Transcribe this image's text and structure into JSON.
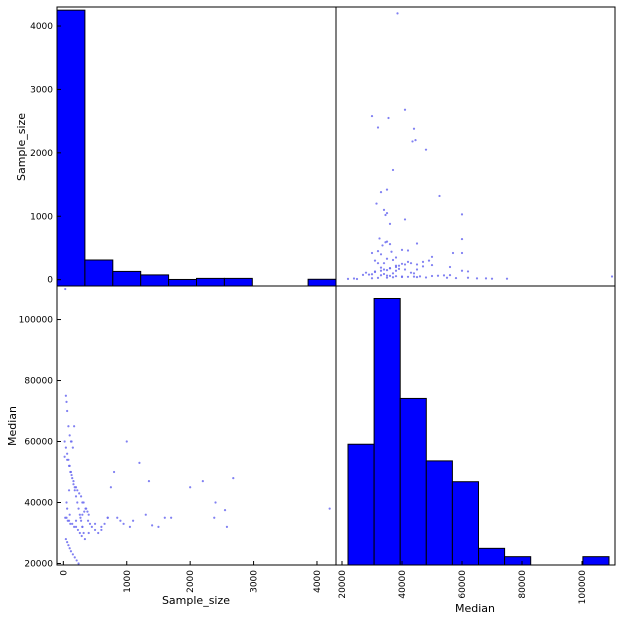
{
  "chart_data": [
    {
      "panel": "Sample_size vs Sample_size",
      "type": "bar",
      "bin_edges": [
        0,
        435,
        870,
        1305,
        1740,
        2175,
        2610,
        3045,
        3480,
        3915,
        4350
      ],
      "values": [
        4250,
        310,
        130,
        75,
        3,
        20,
        20,
        0,
        0,
        6
      ],
      "ylim": [
        -100,
        4300
      ],
      "yticks": [
        "0",
        "1000",
        "2000",
        "3000",
        "4000"
      ],
      "ylabel": "Sample_size"
    },
    {
      "panel": "Sample_size vs Median",
      "type": "scatter",
      "xlim": [
        18000,
        111000
      ],
      "ylim": [
        -100,
        4300
      ],
      "x": [
        38500,
        30000,
        41000,
        44000,
        32000,
        35500,
        48000,
        43500,
        44500,
        37000,
        35000,
        52500,
        33000,
        31500,
        34500,
        35000,
        34000,
        41000,
        36000,
        32500,
        60000,
        34500,
        45000,
        33500,
        40000,
        42000,
        32000,
        36500,
        30000,
        33000,
        60000,
        50000,
        38000,
        35000,
        31000,
        37000,
        42000,
        34000,
        40000,
        45000,
        50000,
        38000,
        47000,
        56000,
        33000,
        36000,
        39000,
        41000,
        35000,
        60000,
        62000,
        31000,
        43000,
        37000,
        34000,
        30000,
        29000,
        27000,
        33000,
        35000,
        36000,
        38000,
        40000,
        42000,
        45000,
        48000,
        55000,
        58000,
        65000,
        70000,
        25000,
        22000,
        24000,
        30000,
        32000,
        35000,
        37000,
        40000,
        44000,
        46000,
        50000,
        52000,
        54000,
        56000,
        62000,
        68000,
        75000,
        110000,
        28000,
        31000,
        33000,
        34000,
        36000,
        38000,
        39000,
        41000,
        43000,
        47000,
        49000,
        60000,
        57000,
        35000,
        36000,
        32000,
        38000,
        44000,
        45000
      ],
      "y": [
        4200,
        2580,
        2680,
        2380,
        2400,
        2550,
        2050,
        2180,
        2200,
        1730,
        1420,
        1320,
        1380,
        1200,
        1020,
        1050,
        1100,
        950,
        880,
        650,
        640,
        590,
        570,
        540,
        470,
        460,
        450,
        440,
        420,
        400,
        420,
        360,
        350,
        330,
        300,
        310,
        280,
        260,
        250,
        240,
        230,
        220,
        210,
        200,
        190,
        180,
        170,
        160,
        150,
        140,
        130,
        120,
        110,
        100,
        90,
        85,
        80,
        75,
        70,
        65,
        60,
        55,
        50,
        45,
        40,
        35,
        30,
        25,
        20,
        15,
        10,
        12,
        18,
        22,
        28,
        32,
        38,
        42,
        48,
        52,
        58,
        62,
        68,
        72,
        30,
        20,
        15,
        50,
        110,
        130,
        140,
        160,
        180,
        200,
        220,
        240,
        260,
        280,
        300,
        1030,
        420,
        600,
        560,
        260,
        140,
        100,
        160
      ],
      "point_color": "#6a6af0"
    },
    {
      "panel": "Median vs Sample_size",
      "type": "scatter",
      "xlim": [
        -100,
        4300
      ],
      "ylim": [
        19500,
        111000
      ],
      "x": [
        30,
        40,
        50,
        60,
        80,
        100,
        120,
        150,
        20,
        60,
        90,
        110,
        130,
        160,
        180,
        200,
        220,
        250,
        280,
        300,
        320,
        350,
        380,
        400,
        30,
        50,
        70,
        90,
        110,
        140,
        170,
        200,
        230,
        260,
        290,
        40,
        60,
        80,
        100,
        120,
        150,
        180,
        210,
        240,
        270,
        300,
        330,
        360,
        390,
        420,
        450,
        500,
        550,
        600,
        650,
        700,
        750,
        800,
        850,
        900,
        950,
        1000,
        1050,
        1100,
        1200,
        1300,
        1350,
        1400,
        1500,
        1600,
        1700,
        2000,
        2200,
        2400,
        2380,
        2580,
        2680,
        2550,
        4200,
        20,
        40,
        60,
        80,
        100,
        120,
        140,
        160,
        180,
        200,
        220,
        240,
        260,
        280,
        300,
        320,
        340,
        60,
        100,
        200,
        300,
        400,
        500,
        600,
        700,
        50,
        90,
        130,
        170
      ],
      "y": [
        110000,
        75000,
        73000,
        70000,
        65000,
        62000,
        60000,
        58000,
        55000,
        54000,
        52000,
        50000,
        49000,
        47000,
        45000,
        45000,
        44000,
        43000,
        42000,
        40000,
        40000,
        38000,
        37000,
        36000,
        35000,
        35000,
        34000,
        34000,
        33000,
        33000,
        32000,
        32000,
        31000,
        30000,
        29000,
        28000,
        27000,
        26000,
        25000,
        24000,
        23000,
        22000,
        21000,
        20000,
        35000,
        36000,
        37000,
        38000,
        34000,
        33000,
        32000,
        31000,
        30000,
        32000,
        33000,
        35000,
        45000,
        50000,
        35000,
        34000,
        33000,
        60000,
        32000,
        34000,
        53000,
        36000,
        47000,
        32500,
        32000,
        35000,
        35000,
        45000,
        47000,
        40000,
        35000,
        32000,
        48000,
        37500,
        38000,
        60000,
        58000,
        56000,
        54000,
        52000,
        50000,
        48000,
        46000,
        44000,
        42000,
        40000,
        38000,
        36000,
        34000,
        32000,
        30000,
        28000,
        38000,
        36000,
        34000,
        32000,
        30000,
        33000,
        31000,
        35000,
        40000,
        44000,
        60000,
        65000
      ],
      "xticks": [
        "0",
        "1000",
        "2000",
        "3000",
        "4000"
      ],
      "yticks": [
        "20000",
        "40000",
        "60000",
        "80000",
        "100000"
      ],
      "xlabel": "Sample_size",
      "ylabel": "Median",
      "point_color": "#6a6af0"
    },
    {
      "panel": "Median vs Median",
      "type": "bar",
      "bin_edges": [
        22000,
        30700,
        39400,
        48100,
        56800,
        65500,
        74200,
        82900,
        91600,
        100300,
        109000
      ],
      "values": [
        28,
        63,
        39,
        24,
        19,
        3,
        1,
        0,
        0,
        1
      ],
      "ylim": [
        -1,
        66
      ],
      "xticks": [
        "20000",
        "40000",
        "60000",
        "80000",
        "100000"
      ],
      "xlabel": "Median"
    }
  ],
  "colors": {
    "bar_fill": "#0000ff",
    "bar_edge": "#000000",
    "axes_edge": "#000000"
  }
}
